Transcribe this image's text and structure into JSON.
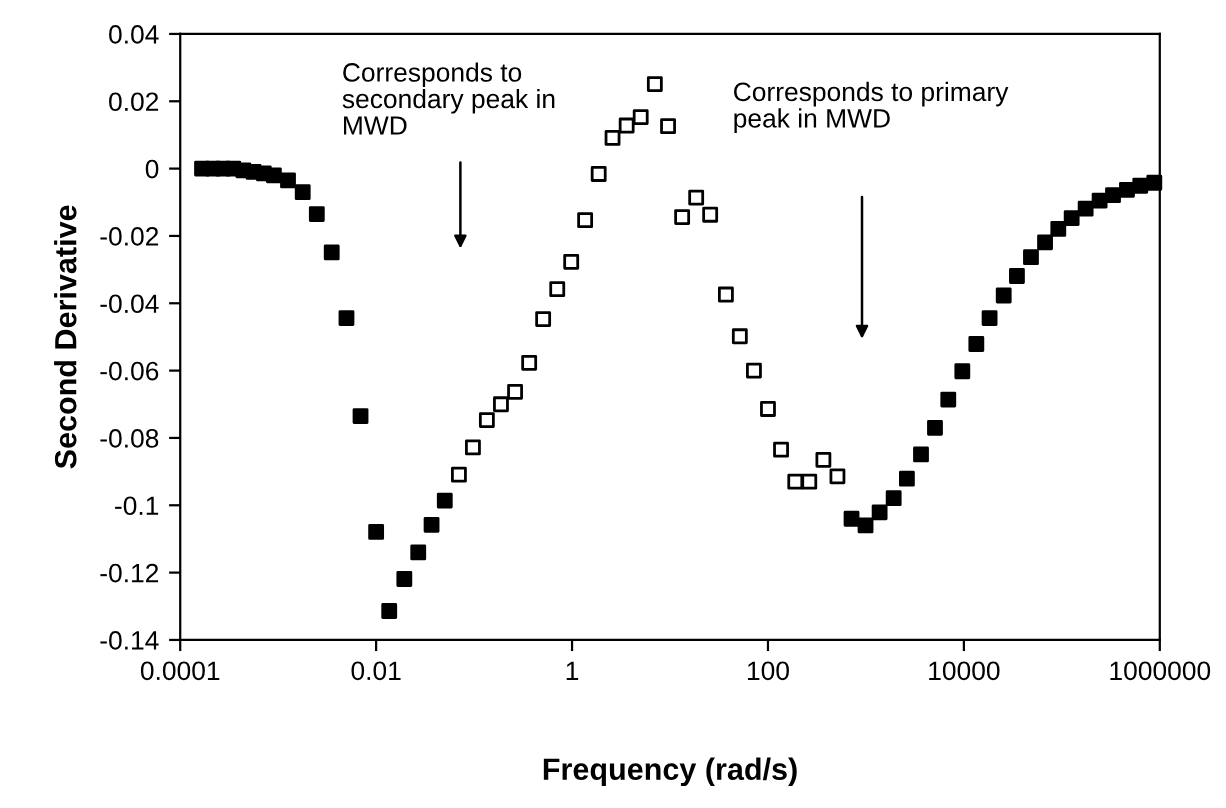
{
  "chart_data": {
    "type": "scatter",
    "xlabel": "Frequency (rad/s)",
    "ylabel": "Second Derivative",
    "log": "x",
    "xlim": [
      0.0001,
      1000000
    ],
    "xticks": [
      0.0001,
      0.01,
      1,
      100,
      10000,
      1000000
    ],
    "ylim": [
      -0.14,
      0.04
    ],
    "yticks": [
      0.04,
      0.02,
      0,
      -0.02,
      -0.04,
      -0.06,
      -0.08,
      -0.1,
      -0.12,
      -0.14
    ],
    "grid": false,
    "marker": "square",
    "series": [
      {
        "color": "#000000",
        "x": [
          0.000167,
          0.000216,
          0.000274,
          0.000348,
          0.000441,
          0.000561,
          0.000713,
          0.000904,
          0.00126,
          0.00178,
          0.00248,
          0.00352,
          0.00498,
          0.00693,
          0.01,
          0.0136,
          0.0194,
          0.0269,
          0.0368,
          0.0502,
          713,
          991,
          1380,
          1920,
          2620,
          3650,
          5070,
          6930,
          9640,
          13400,
          18300,
          25500,
          34800,
          48400,
          67400,
          92000,
          126000,
          175000,
          243000,
          333000,
          462000,
          632000,
          879000
        ],
        "values": [
          0.0,
          0.0,
          0.0,
          0.0,
          -0.0005,
          -0.001,
          -0.0014,
          -0.002,
          -0.0035,
          -0.007,
          -0.0135,
          -0.0249,
          -0.0444,
          -0.0735,
          -0.1079,
          -0.1314,
          -0.1219,
          -0.114,
          -0.1058,
          -0.0986,
          -0.104,
          -0.106,
          -0.1021,
          -0.0979,
          -0.0921,
          -0.0849,
          -0.077,
          -0.0686,
          -0.0602,
          -0.0521,
          -0.0444,
          -0.0377,
          -0.0319,
          -0.0263,
          -0.0219,
          -0.0179,
          -0.0147,
          -0.0119,
          -0.0095,
          -0.0079,
          -0.0063,
          -0.0051,
          -0.0042
        ]
      },
      {
        "color": "#ffffff",
        "x": [
          0.07,
          0.0973,
          0.135,
          0.188,
          0.262,
          0.365,
          0.507,
          0.706,
          0.98,
          1.36,
          1.87,
          2.59,
          3.61,
          5.02,
          7.0,
          9.55,
          13.3,
          18.5,
          25.7,
          37.2,
          51.6,
          71.9,
          100,
          136,
          190,
          264,
          368,
          512
        ],
        "values": [
          -0.0909,
          -0.0828,
          -0.0747,
          -0.07,
          -0.0663,
          -0.0577,
          -0.0447,
          -0.0358,
          -0.0277,
          -0.0153,
          -0.0016,
          0.0091,
          0.0128,
          0.0153,
          0.0251,
          0.0126,
          -0.0144,
          -0.0086,
          -0.0137,
          -0.0374,
          -0.0498,
          -0.06,
          -0.0714,
          -0.0835,
          -0.093,
          -0.093,
          -0.0865,
          -0.0914
        ]
      }
    ],
    "annotations": [
      "Corresponds to\nsecondary peak in\nMWD",
      "Corresponds to primary\npeak in MWD"
    ]
  }
}
